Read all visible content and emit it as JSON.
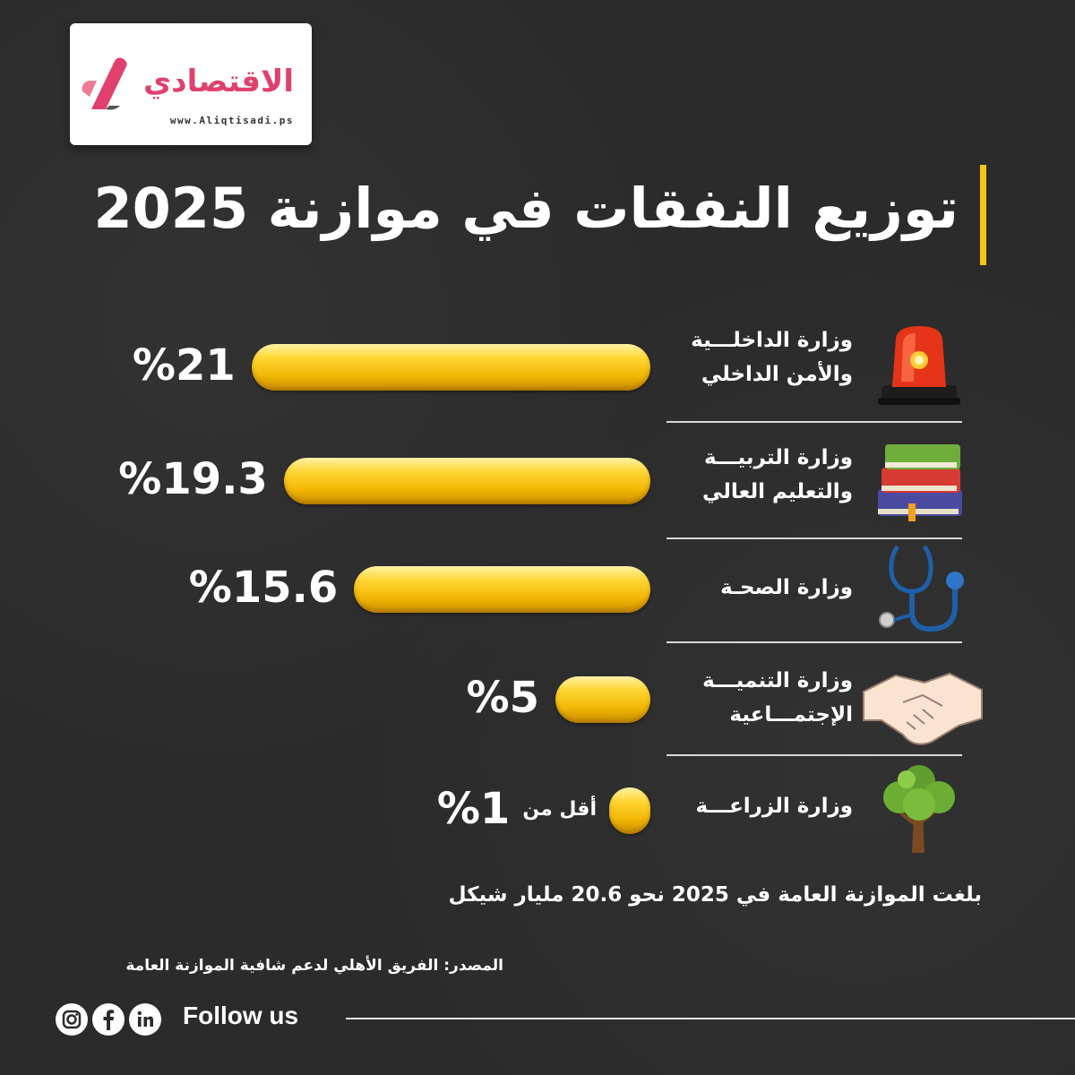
{
  "logo": {
    "name": "الاقتصادي",
    "url": "www.Aliqtisadi.ps"
  },
  "header": {
    "title": "توزيع النفقات في موازنة 2025"
  },
  "chart_data": {
    "type": "bar",
    "orientation": "horizontal",
    "title": "توزيع النفقات في موازنة 2025",
    "categories": [
      "وزارة الداخلـــية والأمن الداخلي",
      "وزارة التربيـــة والتعليم العالي",
      "وزارة الصحـة",
      "وزارة التنميـــة الإجتمـــاعية",
      "وزارة الزراعـــة"
    ],
    "values": [
      21,
      19.3,
      15.6,
      5,
      1
    ],
    "value_labels": [
      "%21",
      "%19.3",
      "%15.6",
      "%5",
      "%1"
    ],
    "value_prefixes": [
      "",
      "",
      "",
      "",
      "أقل من"
    ],
    "unit": "%",
    "bar_color": "#f5c518"
  },
  "rows": [
    {
      "line1": "وزارة الداخلـــية",
      "line2": "والأمن الداخلي",
      "icon": "siren-icon"
    },
    {
      "line1": "وزارة التربيـــة",
      "line2": "والتعليم العالي",
      "icon": "books-icon"
    },
    {
      "line1": "وزارة الصحـة",
      "line2": "",
      "icon": "stethoscope-icon"
    },
    {
      "line1": "وزارة التنميـــة",
      "line2": "الإجتمـــاعية",
      "icon": "handshake-icon"
    },
    {
      "line1": "وزارة الزراعـــة",
      "line2": "",
      "icon": "tree-icon"
    }
  ],
  "footer": {
    "total_note": "بلغت الموازنة العامة في 2025 نحو 20.6 مليار شيكل",
    "source": "المصدر: الفريق الأهلي لدعم شافية الموازنة العامة",
    "follow": "Follow us",
    "social": [
      "instagram-icon",
      "facebook-icon",
      "linkedin-icon"
    ]
  },
  "colors": {
    "background": "#2b2b2b",
    "accent": "#f5c518",
    "brand": "#e0416c"
  }
}
